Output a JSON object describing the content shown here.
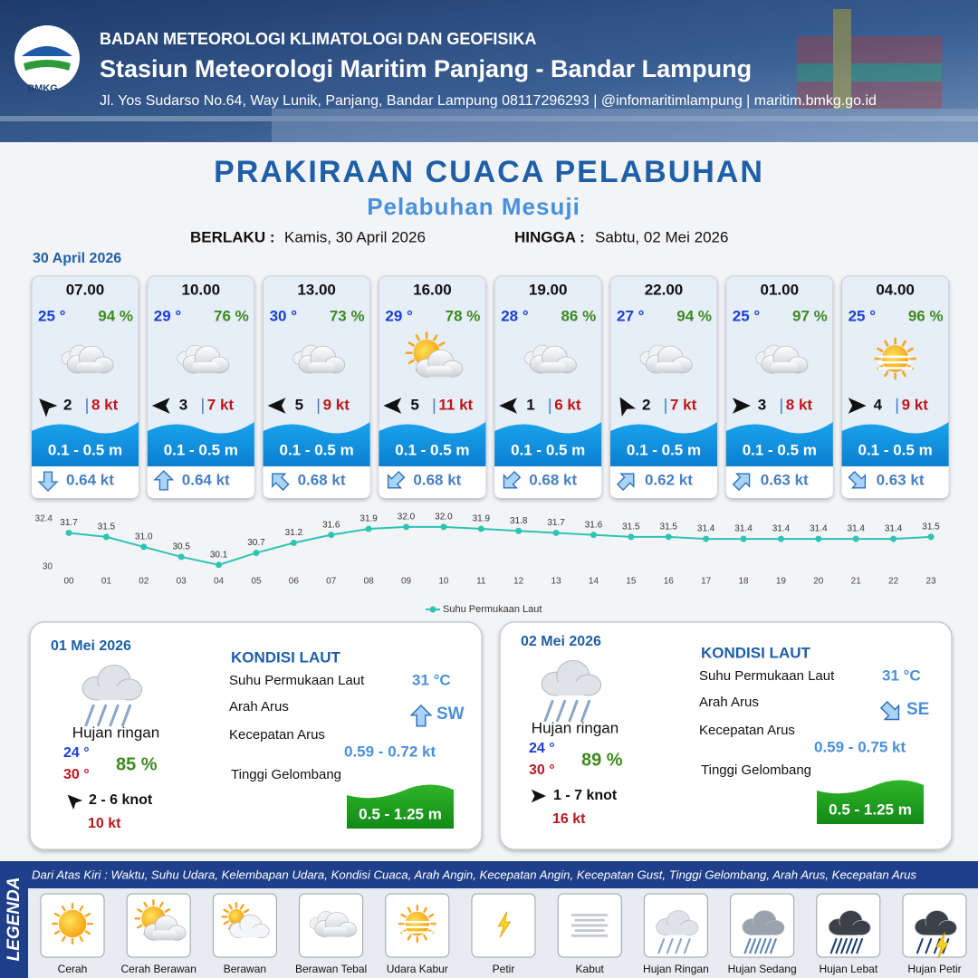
{
  "header": {
    "logo": "BMKG",
    "org": "BADAN METEOROLOGI KLIMATOLOGI DAN GEOFISIKA",
    "station": "Stasiun Meteorologi Maritim Panjang - Bandar Lampung",
    "address": "Jl. Yos Sudarso No.64, Way Lunik, Panjang, Bandar Lampung 08117296293 | @infomaritimlampung | maritim.bmkg.go.id"
  },
  "title": "PRAKIRAAN CUACA PELABUHAN",
  "subtitle": "Pelabuhan Mesuji",
  "validity": {
    "from_label": "BERLAKU :",
    "from": "Kamis, 30 April 2026",
    "to_label": "HINGGA :",
    "to": "Sabtu, 02 Mei 2026"
  },
  "day": "30 April 2026",
  "hourly": [
    {
      "time": "07.00",
      "temp": "25 °",
      "humidity": "94 %",
      "icon": 3,
      "wind_dir": -135,
      "wind": "2",
      "gust": "8 kt",
      "wave": "0.1 - 0.5 m",
      "current_dir": 90,
      "current": "0.64 kt"
    },
    {
      "time": "10.00",
      "temp": "29 °",
      "humidity": "76 %",
      "icon": 3,
      "wind_dir": 180,
      "wind": "3",
      "gust": "7 kt",
      "wave": "0.1 - 0.5 m",
      "current_dir": -90,
      "current": "0.64 kt"
    },
    {
      "time": "13.00",
      "temp": "30 °",
      "humidity": "73 %",
      "icon": 3,
      "wind_dir": 180,
      "wind": "5",
      "gust": "9 kt",
      "wave": "0.1 - 0.5 m",
      "current_dir": -135,
      "current": "0.68 kt"
    },
    {
      "time": "16.00",
      "temp": "29 °",
      "humidity": "78 %",
      "icon": 1,
      "wind_dir": 180,
      "wind": "5",
      "gust": "11 kt",
      "wave": "0.1 - 0.5 m",
      "current_dir": 135,
      "current": "0.68 kt"
    },
    {
      "time": "19.00",
      "temp": "28 °",
      "humidity": "86 %",
      "icon": 3,
      "wind_dir": 180,
      "wind": "1",
      "gust": "6 kt",
      "wave": "0.1 - 0.5 m",
      "current_dir": 135,
      "current": "0.68 kt"
    },
    {
      "time": "22.00",
      "temp": "27 °",
      "humidity": "94 %",
      "icon": 3,
      "wind_dir": -120,
      "wind": "2",
      "gust": "7 kt",
      "wave": "0.1 - 0.5 m",
      "current_dir": -45,
      "current": "0.62 kt"
    },
    {
      "time": "01.00",
      "temp": "25 °",
      "humidity": "97 %",
      "icon": 3,
      "wind_dir": 0,
      "wind": "3",
      "gust": "8 kt",
      "wave": "0.1 - 0.5 m",
      "current_dir": -45,
      "current": "0.63 kt"
    },
    {
      "time": "04.00",
      "temp": "25 °",
      "humidity": "96 %",
      "icon": 4,
      "wind_dir": 0,
      "wind": "4",
      "gust": "9 kt",
      "wave": "0.1 - 0.5 m",
      "current_dir": 45,
      "current": "0.63 kt"
    }
  ],
  "chart_data": {
    "type": "line",
    "categories": [
      "00",
      "01",
      "02",
      "03",
      "04",
      "05",
      "06",
      "07",
      "08",
      "09",
      "10",
      "11",
      "12",
      "13",
      "14",
      "15",
      "16",
      "17",
      "18",
      "19",
      "20",
      "21",
      "22",
      "23"
    ],
    "series": [
      {
        "name": "Suhu Permukaan Laut",
        "color": "#2cc4b4",
        "values": [
          31.7,
          31.5,
          31.0,
          30.5,
          30.1,
          30.7,
          31.2,
          31.6,
          31.9,
          32.0,
          32.0,
          31.9,
          31.8,
          31.7,
          31.6,
          31.5,
          31.5,
          31.4,
          31.4,
          31.4,
          31.4,
          31.4,
          31.4,
          31.5
        ],
        "value_labels": [
          "31.7",
          "31.5",
          "31.0",
          "30.5",
          "30.1",
          "30.7",
          "31.2",
          "31.6",
          "31.9",
          "32.0",
          "32.0",
          "31.9",
          "31.8",
          "31.7",
          "31.6",
          "31.5",
          "31.5",
          "31.4",
          "31.4",
          "31.4",
          "31.4",
          "31.4",
          "31.4",
          "31.5"
        ]
      }
    ],
    "ylim": [
      30,
      32.4
    ],
    "yticks": [
      30,
      32.4
    ],
    "grid": false,
    "legend": "bottom"
  },
  "daily": [
    {
      "date": "01 Mei 2026",
      "icon": 7,
      "condition": "Hujan ringan",
      "tmin": "24 °",
      "tmax": "30 °",
      "humidity": "85 %",
      "wind_dir": -135,
      "wind": "2 - 6 knot",
      "gust": "10 kt",
      "sea_heading": "KONDISI LAUT",
      "sst_label": "Suhu Permukaan Laut",
      "sst": "31 °C",
      "current_dir_label": "Arah Arus",
      "current_dir": -90,
      "current_dir_text": "SW",
      "current_speed_label": "Kecepatan Arus",
      "current_speed": "0.59 - 0.72 kt",
      "wave_label": "Tinggi Gelombang",
      "wave": "0.5 - 1.25 m"
    },
    {
      "date": "02 Mei 2026",
      "icon": 7,
      "condition": "Hujan ringan",
      "tmin": "24 °",
      "tmax": "30 °",
      "humidity": "89 %",
      "wind_dir": 0,
      "wind": "1 - 7 knot",
      "gust": "16 kt",
      "sea_heading": "KONDISI LAUT",
      "sst_label": "Suhu Permukaan Laut",
      "sst": "31 °C",
      "current_dir_label": "Arah Arus",
      "current_dir": 45,
      "current_dir_text": "SE",
      "current_speed_label": "Kecepatan Arus",
      "current_speed": "0.59 -  0.75 kt",
      "wave_label": "Tinggi Gelombang",
      "wave": "0.5 - 1.25 m"
    }
  ],
  "legend": {
    "title": "LEGENDA",
    "note": "Dari Atas Kiri : Waktu, Suhu Udara, Kelembapan Udara, Kondisi Cuaca, Arah Angin, Kecepatan Angin, Kecepatan Gust, Tinggi Gelombang, Arah Arus, Kecepatan Arus",
    "items": [
      "Cerah",
      "Cerah Berawan",
      "Berawan",
      "Berawan Tebal",
      "Udara Kabur",
      "Petir",
      "Kabut",
      "Hujan Ringan",
      "Hujan Sedang",
      "Hujan Lebat",
      "Hujan Petir"
    ]
  }
}
